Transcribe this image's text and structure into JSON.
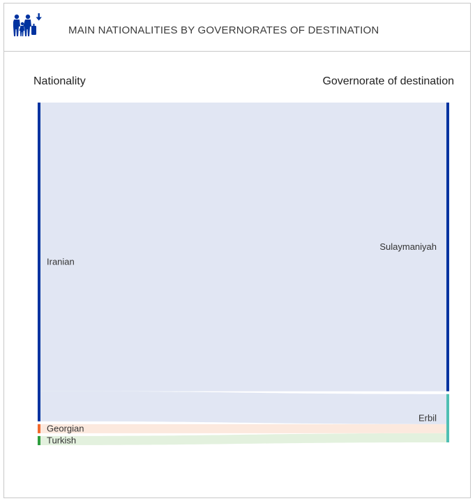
{
  "header": {
    "title": "MAIN NATIONALITIES BY GOVERNORATES OF DESTINATION",
    "icon": "migrant-family-icon",
    "icon_color": "#0033a0"
  },
  "columns": {
    "left_label": "Nationality",
    "right_label": "Governorate of destination"
  },
  "chart_data": {
    "type": "sankey",
    "sources": [
      {
        "name": "Iranian",
        "color": "#0033a0"
      },
      {
        "name": "Georgian",
        "color": "#f26a2e"
      },
      {
        "name": "Turkish",
        "color": "#2e9e3e"
      }
    ],
    "targets": [
      {
        "name": "Sulaymaniyah",
        "color": "#0033a0"
      },
      {
        "name": "Erbil",
        "color": "#4fbfb3"
      }
    ],
    "links": [
      {
        "source": "Iranian",
        "target": "Sulaymaniyah",
        "value": 85.4,
        "color": "#dfe5f2"
      },
      {
        "source": "Iranian",
        "target": "Erbil",
        "value": 8.9,
        "color": "#dfe5f2"
      },
      {
        "source": "Georgian",
        "target": "Erbil",
        "value": 2.7,
        "color": "#fce8dc"
      },
      {
        "source": "Turkish",
        "target": "Erbil",
        "value": 2.7,
        "color": "#e2f0dc"
      }
    ]
  }
}
